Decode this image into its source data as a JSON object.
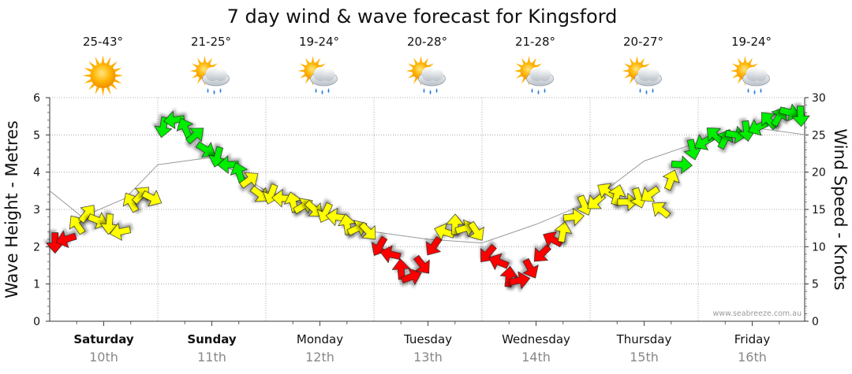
{
  "title": "7 day wind & wave forecast for Kingsford",
  "watermark": "www.seabreeze.com.au",
  "days": [
    {
      "day": "Saturday",
      "date": "10th",
      "temp": "25-43°",
      "icon": "sun-icon",
      "bold": true
    },
    {
      "day": "Sunday",
      "date": "11th",
      "temp": "21-25°",
      "icon": "sun-cloud-rain-icon",
      "bold": true
    },
    {
      "day": "Monday",
      "date": "12th",
      "temp": "19-24°",
      "icon": "sun-cloud-rain-icon",
      "bold": false
    },
    {
      "day": "Tuesday",
      "date": "13th",
      "temp": "20-28°",
      "icon": "sun-cloud-rain-icon",
      "bold": false
    },
    {
      "day": "Wednesday",
      "date": "14th",
      "temp": "21-28°",
      "icon": "sun-cloud-rain-icon",
      "bold": false
    },
    {
      "day": "Thursday",
      "date": "15th",
      "temp": "20-27°",
      "icon": "sun-cloud-rain-icon",
      "bold": false
    },
    {
      "day": "Friday",
      "date": "16th",
      "temp": "19-24°",
      "icon": "sun-cloud-rain-icon",
      "bold": false
    }
  ],
  "colors": {
    "low": "#ff0000",
    "mid": "#ffff00",
    "high": "#00ee00",
    "wave": "#9a9a9a"
  },
  "chart_data": {
    "type": "line",
    "title": "7 day wind & wave forecast for Kingsford",
    "ylabel_left": "Wave Height - Metres",
    "ylabel_right": "Wind Speed - Knots",
    "ylim_left": [
      0,
      6
    ],
    "ylim_right": [
      0,
      30
    ],
    "yticks_left": [
      0,
      1,
      2,
      3,
      4,
      5,
      6
    ],
    "yticks_right": [
      0,
      5,
      10,
      15,
      20,
      25,
      30
    ],
    "grid": true,
    "x_unit": "days from Saturday 10th 00:00",
    "series": [
      {
        "name": "Wind Speed - Knots",
        "x": [
          0.05,
          0.15,
          0.25,
          0.35,
          0.45,
          0.55,
          0.65,
          0.75,
          0.85,
          0.95,
          1.05,
          1.15,
          1.25,
          1.35,
          1.45,
          1.55,
          1.65,
          1.75,
          1.85,
          1.95,
          2.05,
          2.15,
          2.25,
          2.35,
          2.45,
          2.55,
          2.65,
          2.75,
          2.85,
          2.95,
          3.05,
          3.15,
          3.25,
          3.35,
          3.45,
          3.55,
          3.65,
          3.75,
          3.85,
          3.95,
          4.05,
          4.15,
          4.25,
          4.35,
          4.45,
          4.55,
          4.65,
          4.75,
          4.85,
          4.95,
          5.05,
          5.15,
          5.25,
          5.35,
          5.45,
          5.55,
          5.65,
          5.75,
          5.85,
          5.95,
          6.05,
          6.15,
          6.25,
          6.35,
          6.45,
          6.55,
          6.65,
          6.75,
          6.85,
          6.95
        ],
        "values": [
          10.5,
          11,
          13,
          14.5,
          13.5,
          13,
          12,
          16,
          17,
          16.5,
          26,
          27,
          26,
          25,
          23,
          22,
          21,
          20,
          19,
          17,
          17,
          16.5,
          16,
          15.5,
          15,
          14.5,
          14,
          13,
          12.5,
          12,
          10,
          9,
          7,
          6,
          7.5,
          10,
          12,
          13,
          12.5,
          12,
          9,
          8,
          6,
          5.5,
          7,
          9,
          11,
          12,
          14,
          15.5,
          16,
          17.5,
          17,
          16,
          16.5,
          17,
          15,
          19,
          21,
          23,
          24,
          25,
          24.5,
          25,
          25.5,
          26,
          27,
          27.5,
          28,
          27.5
        ]
      },
      {
        "name": "Wave Height - Metres",
        "x": [
          0.0,
          0.3,
          0.7,
          1.0,
          1.5,
          2.0,
          2.5,
          3.0,
          3.5,
          4.0,
          4.5,
          5.0,
          5.5,
          6.0,
          6.5,
          7.0
        ],
        "values": [
          3.5,
          2.8,
          3.3,
          4.2,
          4.4,
          3.5,
          3.0,
          2.4,
          2.2,
          2.1,
          2.6,
          3.2,
          4.3,
          4.8,
          5.2,
          5.0
        ]
      }
    ],
    "color_bands": "red below 12 knots, yellow 12-20 knots, green above 20 knots"
  }
}
